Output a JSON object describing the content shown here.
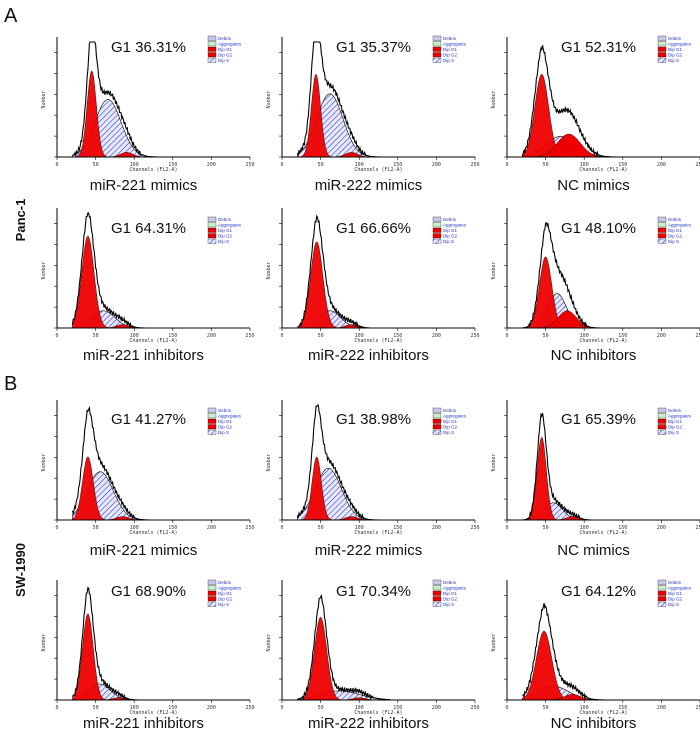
{
  "figure": {
    "section_a": "A",
    "section_b": "B",
    "cell_line_a": "Panc-1",
    "cell_line_b": "SW-1990"
  },
  "chart_data": [
    {
      "type": "area",
      "title": "G1 36.31%",
      "condition": "miR-221 mimics",
      "cell_line": "Panc-1",
      "g1": {
        "h": 0.75,
        "c": 45,
        "sd": 6
      },
      "s": {
        "h": 0.5,
        "c": 66,
        "sd": 17
      },
      "g2": {
        "h": 0.04,
        "c": 90,
        "sd": 8
      }
    },
    {
      "type": "area",
      "title": "G1 35.37%",
      "condition": "miR-222 mimics",
      "cell_line": "Panc-1",
      "g1": {
        "h": 0.72,
        "c": 44,
        "sd": 6
      },
      "s": {
        "h": 0.55,
        "c": 62,
        "sd": 17
      },
      "g2": {
        "h": 0.04,
        "c": 90,
        "sd": 8
      }
    },
    {
      "type": "area",
      "title": "G1 52.31%",
      "condition": "NC mimics",
      "cell_line": "Panc-1",
      "g1": {
        "h": 0.72,
        "c": 45,
        "sd": 9
      },
      "s": {
        "h": 0.18,
        "c": 70,
        "sd": 20
      },
      "g2": {
        "h": 0.2,
        "c": 80,
        "sd": 15
      }
    },
    {
      "type": "area",
      "title": "G1 64.31%",
      "condition": "miR-221 inhibitors",
      "cell_line": "Panc-1",
      "g1": {
        "h": 0.8,
        "c": 40,
        "sd": 8
      },
      "s": {
        "h": 0.15,
        "c": 60,
        "sd": 15
      },
      "g2": {
        "h": 0.03,
        "c": 85,
        "sd": 8
      }
    },
    {
      "type": "area",
      "title": "G1 66.66%",
      "condition": "miR-222 inhibitors",
      "cell_line": "Panc-1",
      "g1": {
        "h": 0.75,
        "c": 45,
        "sd": 8
      },
      "s": {
        "h": 0.15,
        "c": 62,
        "sd": 14
      },
      "g2": {
        "h": 0.03,
        "c": 90,
        "sd": 8
      }
    },
    {
      "type": "area",
      "title": "G1 48.10%",
      "condition": "NC inhibitors",
      "cell_line": "Panc-1",
      "g1": {
        "h": 0.62,
        "c": 50,
        "sd": 8
      },
      "s": {
        "h": 0.3,
        "c": 65,
        "sd": 12
      },
      "g2": {
        "h": 0.15,
        "c": 78,
        "sd": 12
      }
    },
    {
      "type": "area",
      "title": "G1 41.27%",
      "condition": "miR-221 mimics",
      "cell_line": "SW-1990",
      "g1": {
        "h": 0.55,
        "c": 40,
        "sd": 7
      },
      "s": {
        "h": 0.42,
        "c": 56,
        "sd": 17
      },
      "g2": {
        "h": 0.03,
        "c": 85,
        "sd": 8
      }
    },
    {
      "type": "area",
      "title": "G1 38.98%",
      "condition": "miR-222 mimics",
      "cell_line": "SW-1990",
      "g1": {
        "h": 0.55,
        "c": 45,
        "sd": 6
      },
      "s": {
        "h": 0.45,
        "c": 60,
        "sd": 17
      },
      "g2": {
        "h": 0.03,
        "c": 90,
        "sd": 8
      }
    },
    {
      "type": "area",
      "title": "G1 65.39%",
      "condition": "NC mimics",
      "cell_line": "SW-1990",
      "g1": {
        "h": 0.72,
        "c": 45,
        "sd": 6
      },
      "s": {
        "h": 0.15,
        "c": 60,
        "sd": 12
      },
      "g2": {
        "h": 0.03,
        "c": 85,
        "sd": 8
      }
    },
    {
      "type": "area",
      "title": "G1 68.90%",
      "condition": "miR-221 inhibitors",
      "cell_line": "SW-1990",
      "g1": {
        "h": 0.75,
        "c": 40,
        "sd": 7
      },
      "s": {
        "h": 0.14,
        "c": 55,
        "sd": 14
      },
      "g2": {
        "h": 0.02,
        "c": 80,
        "sd": 8
      }
    },
    {
      "type": "area",
      "title": "G1 70.34%",
      "condition": "miR-222 inhibitors",
      "cell_line": "SW-1990",
      "g1": {
        "h": 0.72,
        "c": 50,
        "sd": 8
      },
      "s": {
        "h": 0.08,
        "c": 75,
        "sd": 25
      },
      "g2": {
        "h": 0.02,
        "c": 100,
        "sd": 8
      }
    },
    {
      "type": "area",
      "title": "G1 64.12%",
      "condition": "NC inhibitors",
      "cell_line": "SW-1990",
      "g1": {
        "h": 0.6,
        "c": 48,
        "sd": 10
      },
      "s": {
        "h": 0.12,
        "c": 60,
        "sd": 20
      },
      "g2": {
        "h": 0.05,
        "c": 85,
        "sd": 10
      }
    }
  ],
  "axes": {
    "xlabel": "Channels (FL2-A)",
    "ylabel": "Number",
    "xticks": [
      "0",
      "50",
      "100",
      "150",
      "200",
      "250"
    ],
    "xlim": [
      0,
      250
    ]
  },
  "legend": [
    {
      "label": "Debris",
      "color": "#c8c8f0"
    },
    {
      "label": "Aggregates",
      "color": "#c8f0c8"
    },
    {
      "label": "Dip G1",
      "color": "#ee0000"
    },
    {
      "label": "Dip G2",
      "color": "#ee0000"
    },
    {
      "label": "Dip S",
      "color": "#ffffff"
    }
  ],
  "colors": {
    "g1": "#ee0000",
    "s_hatch": "#3344bb",
    "envelope": "#000000"
  }
}
